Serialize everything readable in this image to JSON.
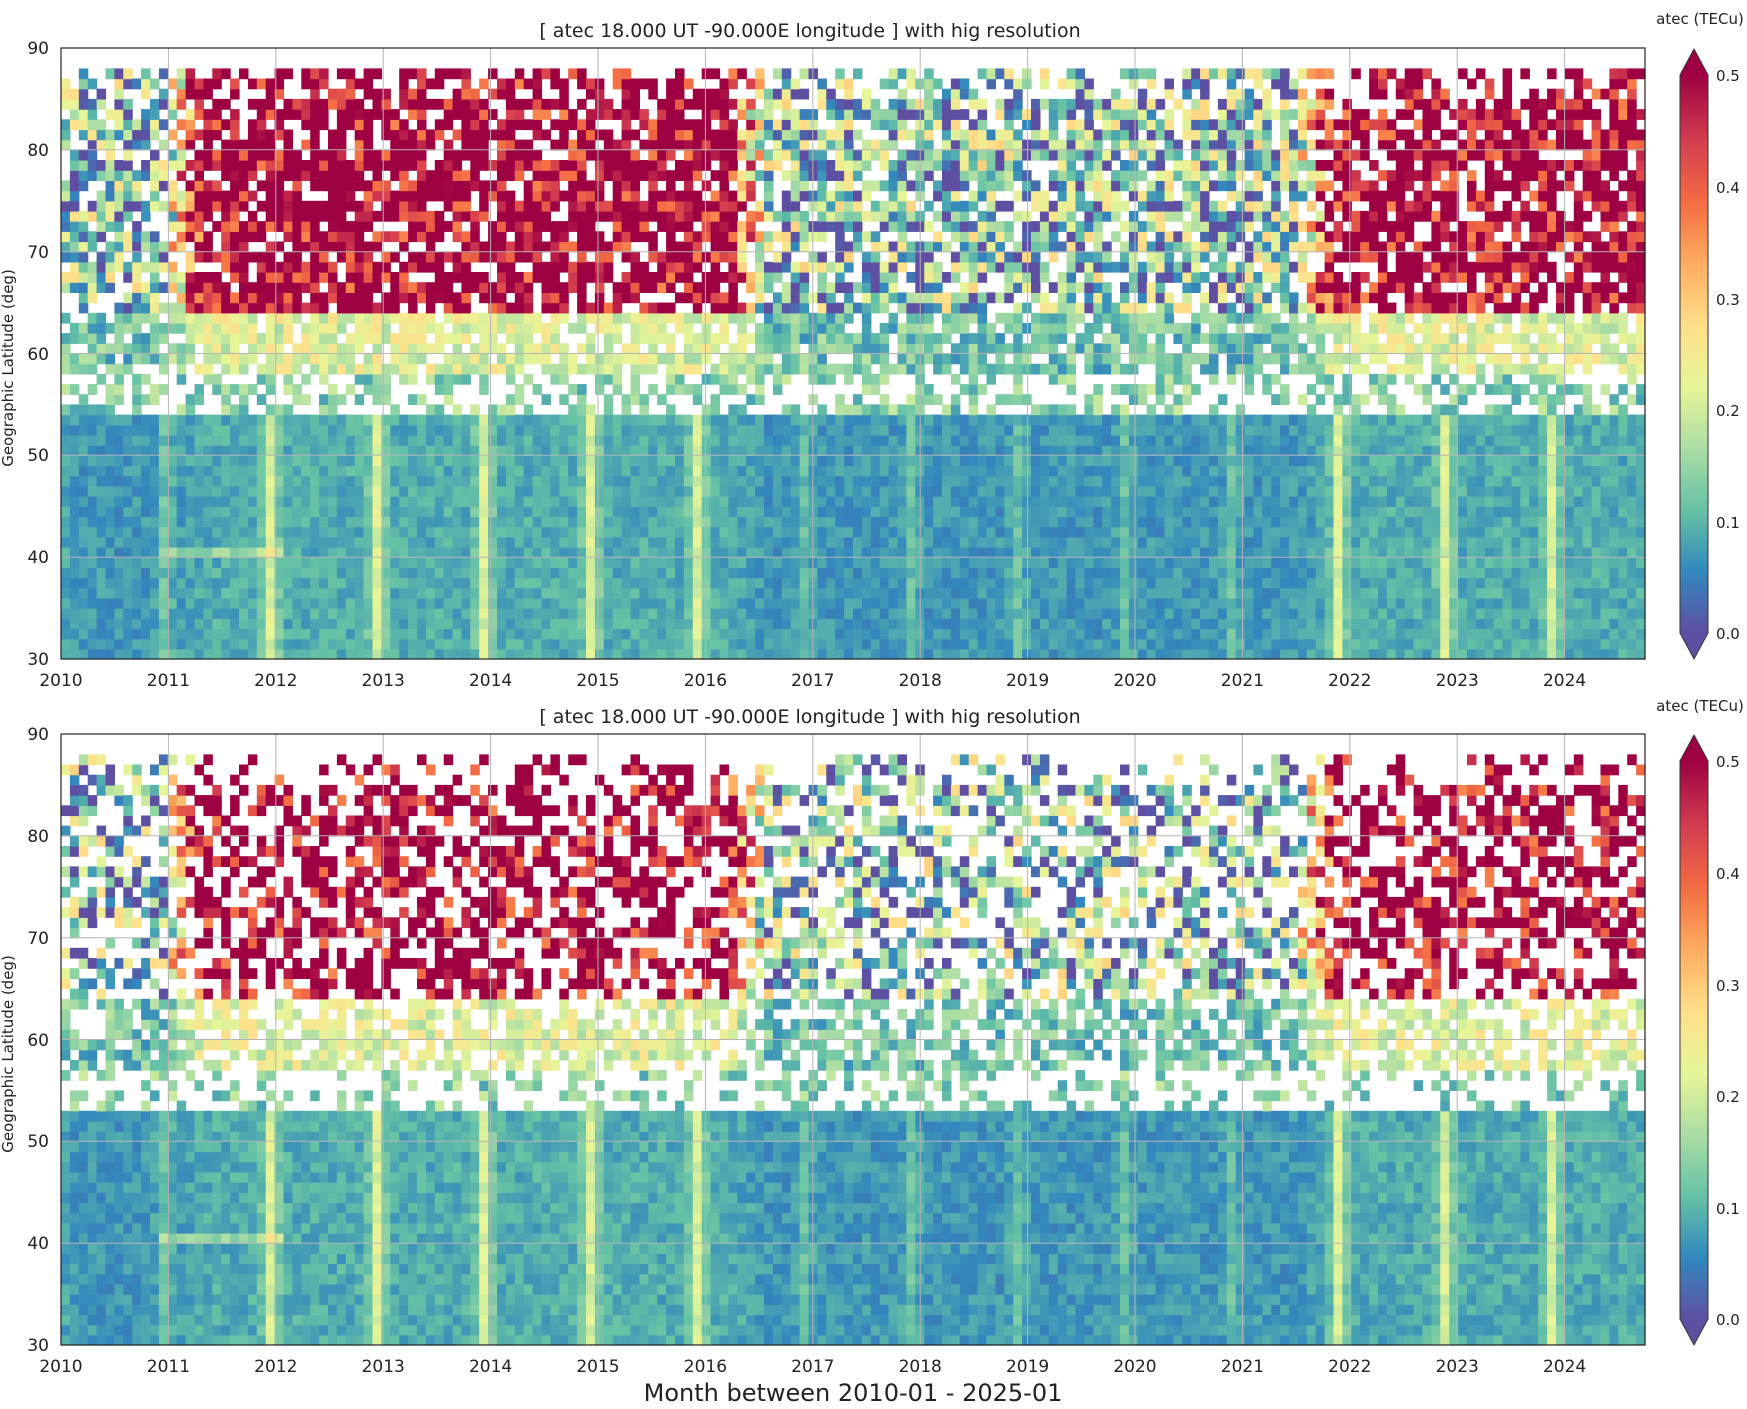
{
  "figure": {
    "xlabel": "Month between 2010-01 - 2025-01"
  },
  "chart_data": [
    {
      "type": "heatmap",
      "title": "[ atec   18.000 UT  -90.000E longitude ] with hig resolution",
      "xlabel": "",
      "ylabel": "Geographic Latitude (deg)",
      "colorbar_label": "atec (TECu)",
      "colorbar_ticks": [
        "0.0",
        "0.1",
        "0.2",
        "0.3",
        "0.4",
        "0.5"
      ],
      "clim": [
        0.0,
        0.5
      ],
      "colormap": [
        "#5e4fa2",
        "#3288bd",
        "#66c2a5",
        "#abdda4",
        "#e6f598",
        "#fee08b",
        "#fdae61",
        "#f46d43",
        "#d53e4f",
        "#9e0142"
      ],
      "xlim": [
        2010.0,
        2024.83
      ],
      "ylim": [
        30,
        90
      ],
      "x_ticks": [
        "2010",
        "2011",
        "2012",
        "2013",
        "2014",
        "2015",
        "2016",
        "2017",
        "2018",
        "2019",
        "2020",
        "2021",
        "2022",
        "2023",
        "2024"
      ],
      "y_ticks": [
        "30",
        "40",
        "50",
        "60",
        "70",
        "80",
        "90"
      ],
      "grid": true,
      "months": 178,
      "lat_bins": 60,
      "data_top_lat": 88,
      "low_lat_edge": 54,
      "gap_band": [
        54,
        58
      ],
      "high_activity_periods": [
        [
          2011.3,
          2016.2
        ],
        [
          2021.9,
          2024.9
        ]
      ],
      "quiet_period": [
        2016.3,
        2021.8
      ]
    },
    {
      "type": "heatmap",
      "title": "[ atec   18.000 UT  -90.000E longitude ] with hig resolution",
      "xlabel": "Month between 2010-01 - 2025-01",
      "ylabel": "Geographic Latitude (deg)",
      "colorbar_label": "atec (TECu)",
      "colorbar_ticks": [
        "0.0",
        "0.1",
        "0.2",
        "0.3",
        "0.4",
        "0.5"
      ],
      "clim": [
        0.0,
        0.5
      ],
      "colormap": [
        "#5e4fa2",
        "#3288bd",
        "#66c2a5",
        "#abdda4",
        "#e6f598",
        "#fee08b",
        "#fdae61",
        "#f46d43",
        "#d53e4f",
        "#9e0142"
      ],
      "xlim": [
        2010.0,
        2024.83
      ],
      "ylim": [
        30,
        90
      ],
      "x_ticks": [
        "2010",
        "2011",
        "2012",
        "2013",
        "2014",
        "2015",
        "2016",
        "2017",
        "2018",
        "2019",
        "2020",
        "2021",
        "2022",
        "2023",
        "2024"
      ],
      "y_ticks": [
        "30",
        "40",
        "50",
        "60",
        "70",
        "80",
        "90"
      ],
      "grid": true,
      "months": 178,
      "lat_bins": 60,
      "data_top_lat": 88,
      "low_lat_edge": 53,
      "gap_band": [
        53,
        57
      ],
      "high_activity_periods": [
        [
          2011.3,
          2016.2
        ],
        [
          2021.9,
          2024.9
        ]
      ],
      "quiet_period": [
        2016.3,
        2021.8
      ]
    }
  ]
}
